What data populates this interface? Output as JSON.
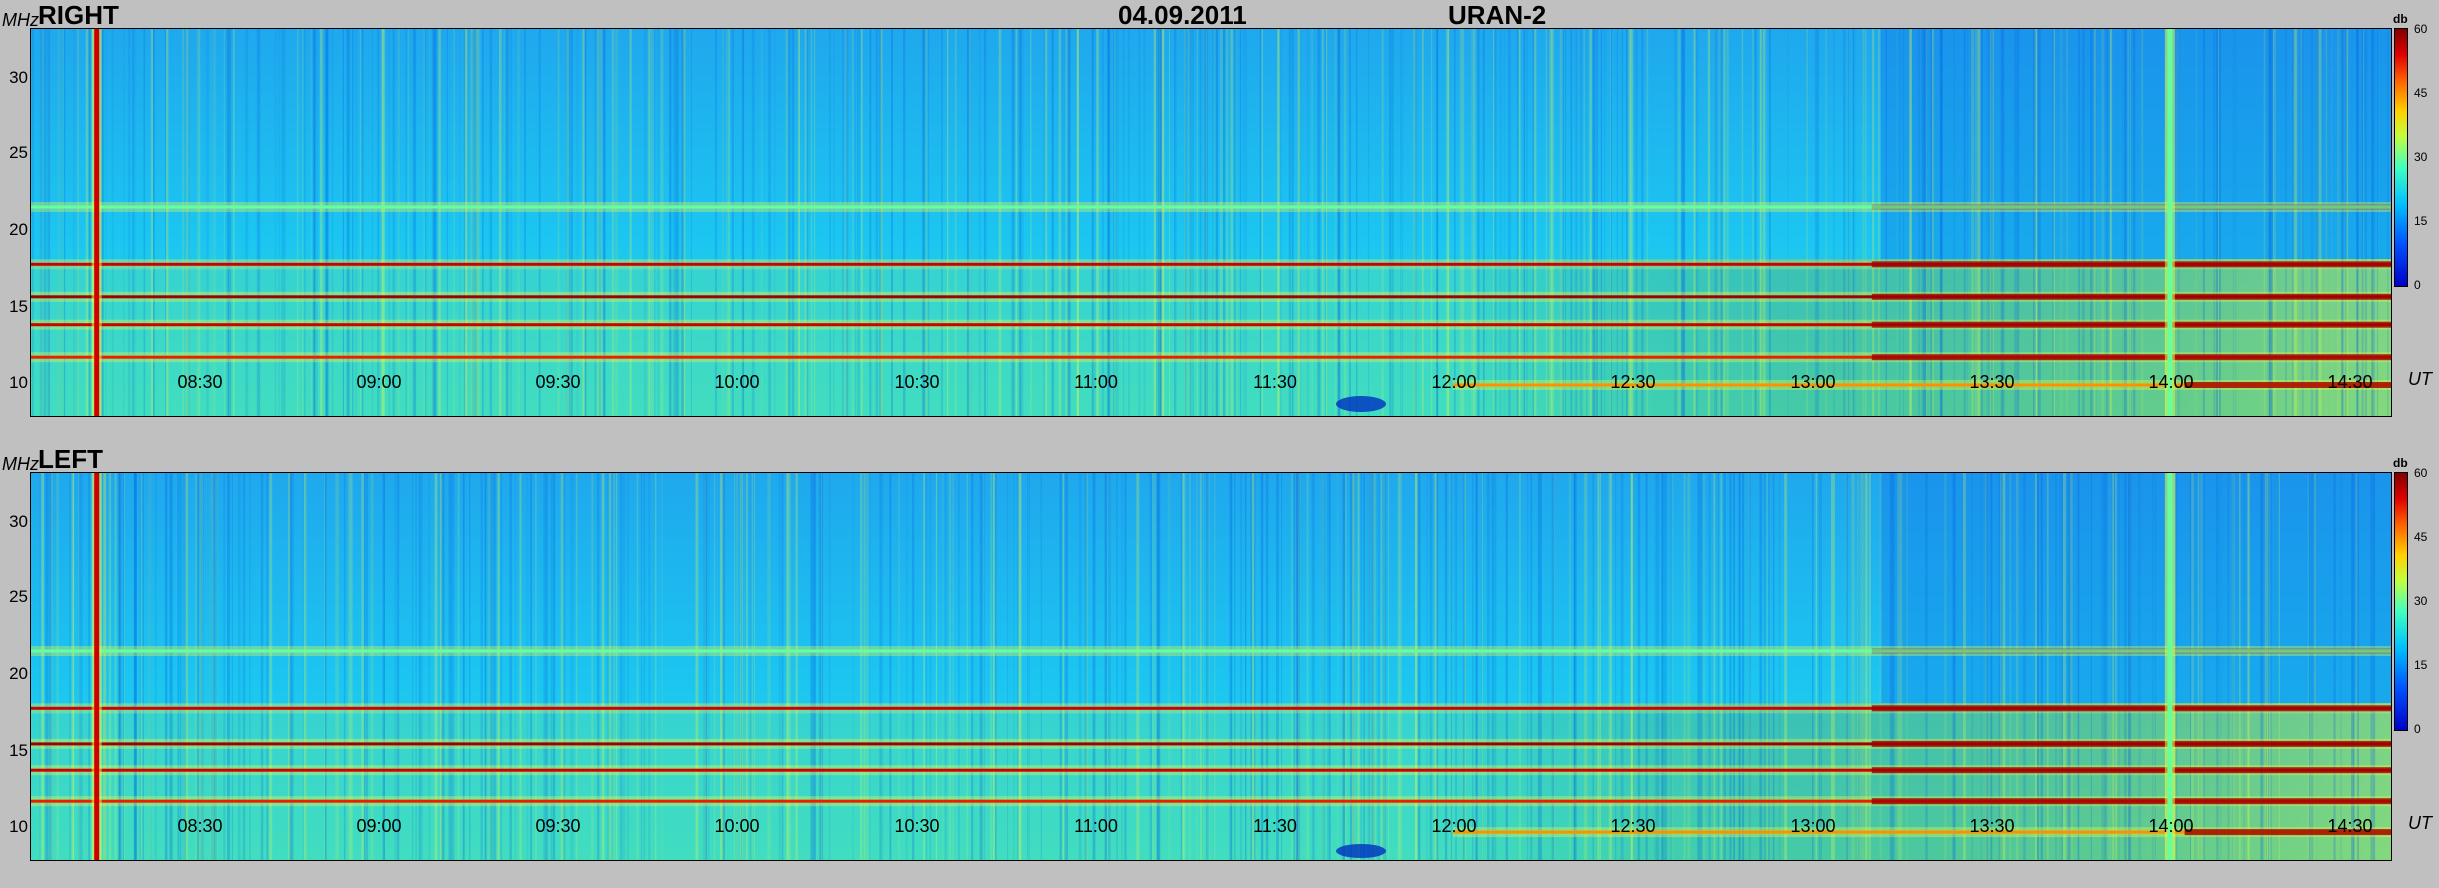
{
  "header": {
    "date": "04.09.2011",
    "instrument": "URAN-2"
  },
  "axes": {
    "y_unit": "MHz",
    "x_unit": "UT",
    "y_ticks": [
      "30",
      "25",
      "20",
      "15",
      "10"
    ],
    "x_ticks": [
      "08:30",
      "09:00",
      "09:30",
      "10:00",
      "10:30",
      "11:00",
      "11:30",
      "12:00",
      "12:30",
      "13:00",
      "13:30",
      "14:00",
      "14:30"
    ]
  },
  "colorbar": {
    "unit": "db",
    "ticks": [
      "60",
      "45",
      "30",
      "15",
      "0"
    ]
  },
  "colors": {
    "background": "#19b8f0",
    "strong": "#a00000",
    "hot": "#ff3000",
    "warm": "#f0ff40",
    "low": "#0060e0"
  },
  "panels": [
    {
      "label": "RIGHT"
    },
    {
      "label": "LEFT"
    }
  ],
  "chart_data": [
    {
      "type": "heatmap",
      "title": "RIGHT",
      "xlabel": "UT",
      "ylabel": "MHz",
      "xlim": [
        "08:02",
        "14:37"
      ],
      "ylim": [
        8,
        33
      ],
      "zlim": [
        0,
        60
      ],
      "zlabel": "db",
      "vertical_features": [
        {
          "time": "08:13",
          "f_from": 8,
          "f_to": 33,
          "db": 55
        },
        {
          "time": "14:00",
          "f_from": 8,
          "f_to": 33,
          "db": 30
        }
      ],
      "horizontal_bands": [
        {
          "freq": 21.5,
          "start": "08:02",
          "end": "14:37",
          "db": 30
        },
        {
          "freq": 17.8,
          "start": "08:02",
          "end": "14:37",
          "db": 55
        },
        {
          "freq": 15.7,
          "start": "08:02",
          "end": "14:37",
          "db": 58
        },
        {
          "freq": 13.9,
          "start": "08:02",
          "end": "14:37",
          "db": 55
        },
        {
          "freq": 11.8,
          "start": "08:02",
          "end": "14:37",
          "db": 52
        },
        {
          "freq": 10.0,
          "start": "12:00",
          "end": "14:37",
          "db": 45
        }
      ]
    },
    {
      "type": "heatmap",
      "title": "LEFT",
      "xlabel": "UT",
      "ylabel": "MHz",
      "xlim": [
        "08:02",
        "14:37"
      ],
      "ylim": [
        8,
        33
      ],
      "zlim": [
        0,
        60
      ],
      "zlabel": "db",
      "vertical_features": [
        {
          "time": "08:13",
          "f_from": 8,
          "f_to": 33,
          "db": 55
        },
        {
          "time": "14:00",
          "f_from": 8,
          "f_to": 33,
          "db": 30
        }
      ],
      "horizontal_bands": [
        {
          "freq": 21.5,
          "start": "08:02",
          "end": "14:37",
          "db": 30
        },
        {
          "freq": 17.8,
          "start": "08:02",
          "end": "14:37",
          "db": 55
        },
        {
          "freq": 15.5,
          "start": "08:02",
          "end": "14:37",
          "db": 58
        },
        {
          "freq": 13.8,
          "start": "08:02",
          "end": "14:37",
          "db": 55
        },
        {
          "freq": 11.8,
          "start": "08:02",
          "end": "14:37",
          "db": 52
        },
        {
          "freq": 9.8,
          "start": "12:00",
          "end": "14:37",
          "db": 45
        }
      ]
    }
  ]
}
